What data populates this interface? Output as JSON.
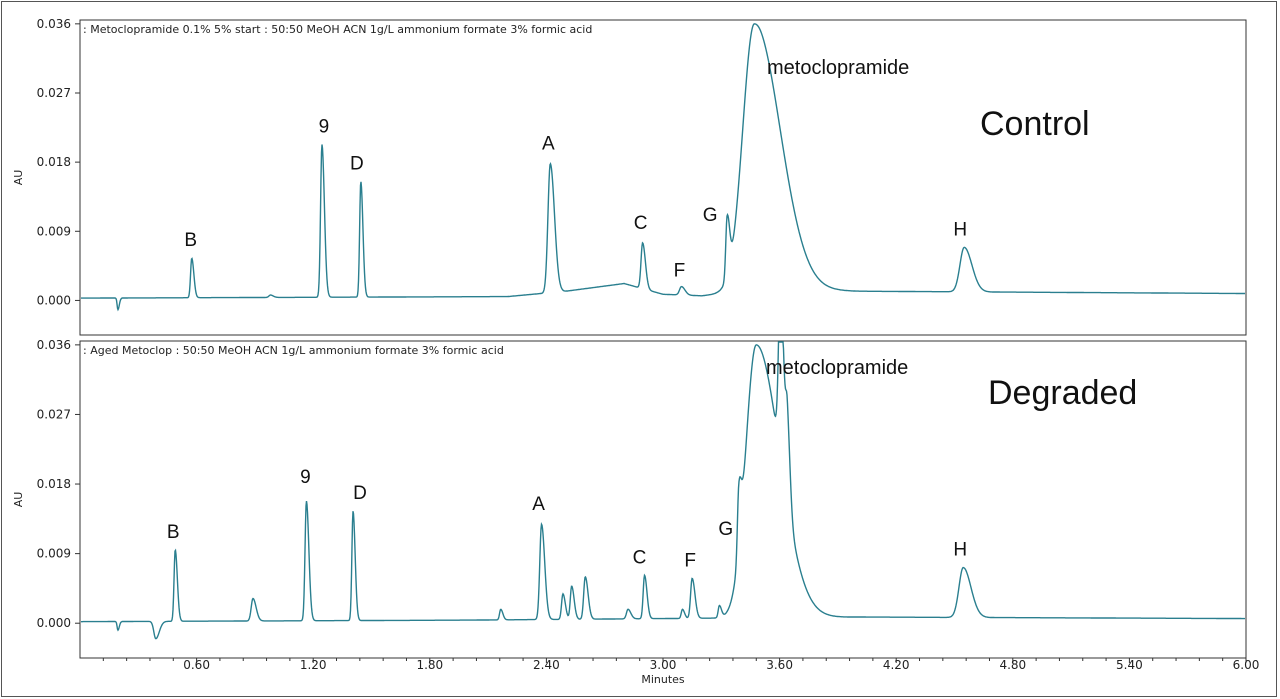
{
  "chart_data": [
    {
      "type": "line",
      "title": ": Metoclopramide 0.1% 5% start : 50:50 MeOH ACN 1g/L ammonium formate 3% formic acid",
      "ylabel": "AU",
      "xlim": [
        0.0,
        6.0
      ],
      "ylim": [
        -0.0045,
        0.0365
      ],
      "y_ticks": [
        "0.000",
        "0.009",
        "0.018",
        "0.027",
        "0.036"
      ],
      "y_tick_values": [
        0.0,
        0.009,
        0.018,
        0.027,
        0.036
      ],
      "panel_label": "Control",
      "series_color": "#2a7f8f",
      "baseline": [
        [
          0.0,
          0.0003
        ],
        [
          2.2,
          0.0005
        ],
        [
          2.5,
          0.0012
        ],
        [
          2.8,
          0.0022
        ],
        [
          3.0,
          0.0008
        ],
        [
          3.2,
          0.0006
        ],
        [
          3.5,
          0.0015
        ],
        [
          4.0,
          0.0012
        ],
        [
          6.0,
          0.0009
        ]
      ],
      "peaks": [
        {
          "label": "",
          "x": 0.195,
          "y": -0.0012,
          "width": 0.004
        },
        {
          "label": "B",
          "x": 0.575,
          "y": 0.0055,
          "width": 0.006
        },
        {
          "label": "",
          "x": 0.98,
          "y": 0.0007,
          "width": 0.008
        },
        {
          "label": "9",
          "x": 1.245,
          "y": 0.0203,
          "width": 0.007
        },
        {
          "label": "D",
          "x": 1.445,
          "y": 0.0155,
          "width": 0.006
        },
        {
          "label": "A",
          "x": 2.42,
          "y": 0.0178,
          "width": 0.012
        },
        {
          "label": "C",
          "x": 2.895,
          "y": 0.0075,
          "width": 0.008
        },
        {
          "label": "F",
          "x": 3.095,
          "y": 0.0018,
          "width": 0.01
        },
        {
          "label": "G",
          "x": 3.33,
          "y": 0.0088,
          "width": 0.007
        },
        {
          "label": "metoclopramide",
          "x": 3.47,
          "y": 0.036,
          "width": 0.06,
          "clipped": true
        },
        {
          "label": "H",
          "x": 4.55,
          "y": 0.0069,
          "width": 0.022
        }
      ]
    },
    {
      "type": "line",
      "title": ": Aged Metoclop : 50:50 MeOH ACN 1g/L ammonium formate 3% formic acid",
      "ylabel": "AU",
      "xlabel": "Minutes",
      "xlim": [
        0.0,
        6.0
      ],
      "ylim": [
        -0.0045,
        0.0365
      ],
      "y_ticks": [
        "0.000",
        "0.009",
        "0.018",
        "0.027",
        "0.036"
      ],
      "y_tick_values": [
        0.0,
        0.009,
        0.018,
        0.027,
        0.036
      ],
      "x_ticks": [
        "0.60",
        "1.20",
        "1.80",
        "2.40",
        "3.00",
        "3.60",
        "4.20",
        "4.80",
        "5.40",
        "6.00"
      ],
      "x_tick_values": [
        0.6,
        1.2,
        1.8,
        2.4,
        3.0,
        3.6,
        4.2,
        4.8,
        5.4,
        6.0
      ],
      "panel_label": "Degraded",
      "series_color": "#2a7f8f",
      "baseline": [
        [
          0.0,
          0.0002
        ],
        [
          2.0,
          0.0004
        ],
        [
          3.0,
          0.0006
        ],
        [
          4.0,
          0.0008
        ],
        [
          6.0,
          0.0006
        ]
      ],
      "peaks": [
        {
          "label": "",
          "x": 0.195,
          "y": -0.0009,
          "width": 0.004
        },
        {
          "label": "",
          "x": 0.39,
          "y": -0.002,
          "width": 0.01
        },
        {
          "label": "B",
          "x": 0.49,
          "y": 0.0095,
          "width": 0.006
        },
        {
          "label": "",
          "x": 0.89,
          "y": 0.0032,
          "width": 0.009
        },
        {
          "label": "9",
          "x": 1.165,
          "y": 0.0158,
          "width": 0.007
        },
        {
          "label": "D",
          "x": 1.405,
          "y": 0.0145,
          "width": 0.006
        },
        {
          "label": "",
          "x": 2.165,
          "y": 0.0018,
          "width": 0.006
        },
        {
          "label": "A",
          "x": 2.375,
          "y": 0.0128,
          "width": 0.009
        },
        {
          "label": "",
          "x": 2.485,
          "y": 0.0038,
          "width": 0.007
        },
        {
          "label": "",
          "x": 2.53,
          "y": 0.0048,
          "width": 0.007
        },
        {
          "label": "",
          "x": 2.6,
          "y": 0.006,
          "width": 0.008
        },
        {
          "label": "",
          "x": 2.82,
          "y": 0.0018,
          "width": 0.008
        },
        {
          "label": "C",
          "x": 2.905,
          "y": 0.0062,
          "width": 0.007
        },
        {
          "label": "",
          "x": 3.1,
          "y": 0.0018,
          "width": 0.006
        },
        {
          "label": "F",
          "x": 3.15,
          "y": 0.0058,
          "width": 0.008
        },
        {
          "label": "",
          "x": 3.29,
          "y": 0.0022,
          "width": 0.006
        },
        {
          "label": "G",
          "x": 3.39,
          "y": 0.0088,
          "width": 0.007
        },
        {
          "label": "metoclopramide",
          "x": 3.48,
          "y": 0.036,
          "width": 0.055,
          "clipped": true
        },
        {
          "label": "",
          "x": 3.605,
          "y": 0.0238,
          "width": 0.01
        },
        {
          "label": "",
          "x": 3.64,
          "y": 0.0105,
          "width": 0.008
        },
        {
          "label": "H",
          "x": 4.545,
          "y": 0.0072,
          "width": 0.022
        }
      ]
    }
  ]
}
